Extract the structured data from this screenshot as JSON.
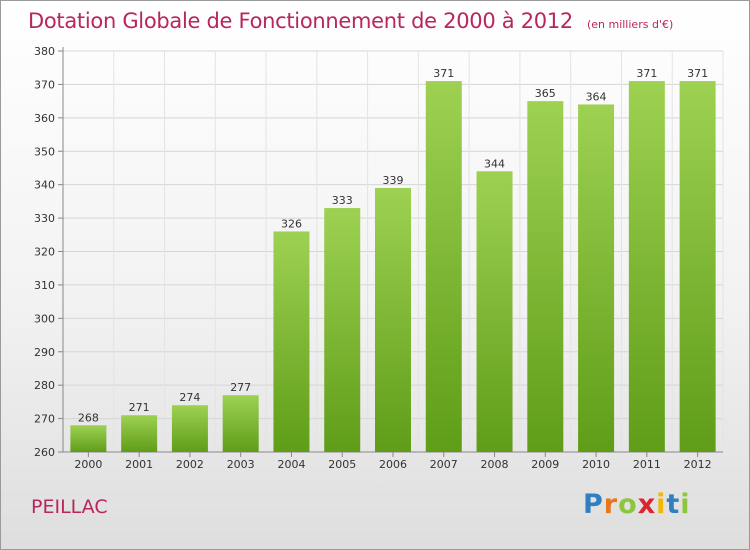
{
  "header": {
    "title": "Dotation Globale de Fonctionnement de 2000 à 2012",
    "unit": "(en milliers d'€)"
  },
  "footer": {
    "commune": "PEILLAC",
    "logo_letters": [
      {
        "ch": "P",
        "color": "#2f7fc1"
      },
      {
        "ch": "r",
        "color": "#e8761c"
      },
      {
        "ch": "o",
        "color": "#8cc63f"
      },
      {
        "ch": "x",
        "color": "#d9262e"
      },
      {
        "ch": "i",
        "color": "#f2b705"
      },
      {
        "ch": "t",
        "color": "#2f7fc1"
      },
      {
        "ch": "i",
        "color": "#8cc63f"
      }
    ]
  },
  "chart_data": {
    "type": "bar",
    "title": "Dotation Globale de Fonctionnement de 2000 à 2012",
    "xlabel": "",
    "ylabel": "",
    "categories": [
      "2000",
      "2001",
      "2002",
      "2003",
      "2004",
      "2005",
      "2006",
      "2007",
      "2008",
      "2009",
      "2010",
      "2011",
      "2012"
    ],
    "values": [
      268,
      271,
      274,
      277,
      326,
      333,
      339,
      371,
      344,
      365,
      364,
      371,
      371
    ],
    "ylim": [
      260,
      380
    ],
    "yticks": [
      260,
      270,
      280,
      290,
      300,
      310,
      320,
      330,
      340,
      350,
      360,
      370,
      380
    ],
    "grid": true,
    "bar_color_top": "#9ed152",
    "bar_color_bottom": "#5f9d18"
  }
}
